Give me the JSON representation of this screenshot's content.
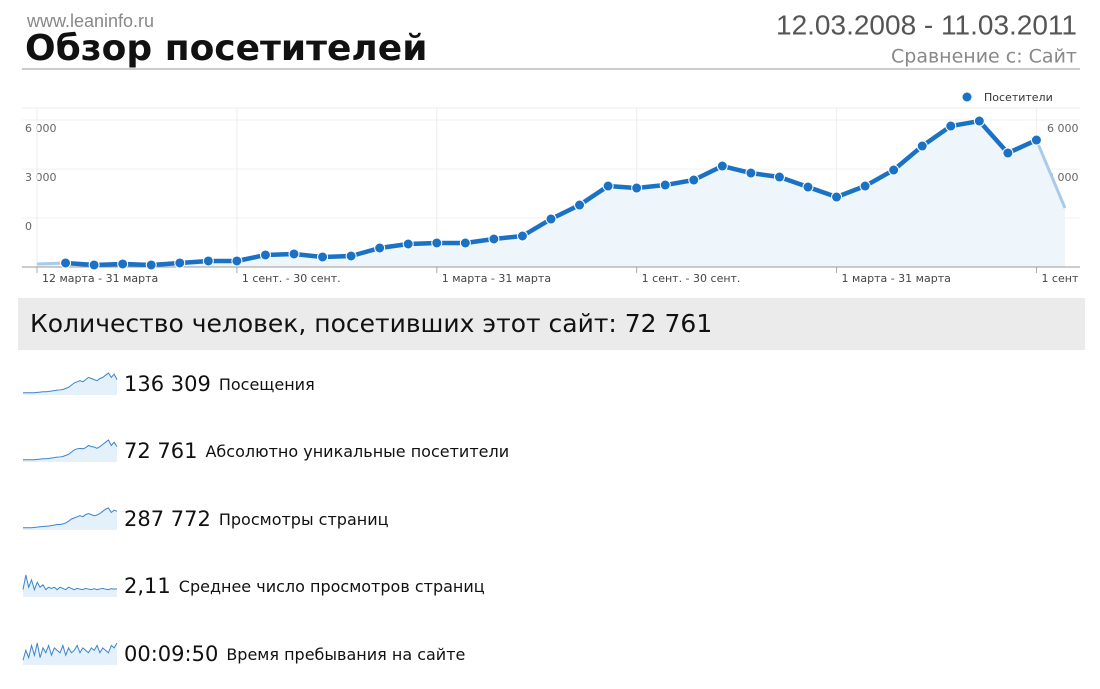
{
  "site": "www.leaninfo.ru",
  "title": "Обзор посетителей",
  "date_range": "12.03.2008 - 11.03.2011",
  "comparison": "Сравнение с: Сайт",
  "chart_data": {
    "type": "line",
    "categories": [
      "12 марта - 31 марта",
      null,
      null,
      null,
      null,
      null,
      null,
      "1 сент. - 30 сент.",
      null,
      null,
      null,
      null,
      null,
      null,
      "1 марта - 31 марта",
      null,
      null,
      null,
      null,
      null,
      null,
      "1 сент. - 30 сент.",
      null,
      null,
      null,
      null,
      null,
      null,
      "1 марта - 31 марта",
      null,
      null,
      null,
      null,
      null,
      null,
      "1 сент",
      null
    ],
    "series": [
      {
        "name": "Посетители",
        "color": "#1b72c4",
        "values": [
          -2265,
          -2204,
          -2327,
          -2265,
          -2327,
          -2204,
          -2082,
          -2082,
          -1714,
          -1653,
          -1837,
          -1776,
          -1286,
          -1041,
          -980,
          -980,
          -735,
          -551,
          490,
          1347,
          2510,
          2388,
          2571,
          2878,
          3735,
          3306,
          3061,
          2449,
          1837,
          2510,
          3490,
          4959,
          6184,
          6490,
          4531,
          5327,
          1163
        ]
      }
    ],
    "ylim": [
      -2450,
      7290
    ],
    "yticks": [
      0,
      {
        "value": 3000,
        "label": "3 000"
      },
      {
        "value": 6000,
        "label": "6 000"
      }
    ],
    "grid": true,
    "legend": "top-right"
  },
  "summary": "Количество человек, посетивших этот сайт: 72 761",
  "metrics": [
    {
      "value": "136 309",
      "label": "Посещения",
      "sparkline": [
        1,
        1,
        1,
        1,
        1,
        1.2,
        1.3,
        1.5,
        1.5,
        1.6,
        1.8,
        2,
        2.2,
        2.3,
        2.5,
        3,
        3.5,
        4.5,
        5.5,
        6,
        6.5,
        6,
        7,
        8,
        7.5,
        7,
        6.5,
        7.5,
        8,
        9,
        10,
        8,
        9.5,
        7
      ]
    },
    {
      "value": "72 761",
      "label": "Абсолютно уникальные посетители",
      "sparkline": [
        1,
        1,
        1,
        1,
        1,
        1.2,
        1.3,
        1.5,
        1.5,
        1.6,
        1.8,
        2,
        2.2,
        2.3,
        2.5,
        3,
        3.5,
        4.5,
        5.5,
        6,
        6.2,
        6,
        6.5,
        7.5,
        7,
        6.8,
        6.2,
        7,
        8,
        9,
        10,
        7.5,
        9,
        7
      ]
    },
    {
      "value": "287 772",
      "label": "Просмотры страниц",
      "sparkline": [
        1,
        1,
        1,
        1,
        1.2,
        1.3,
        1.5,
        1.6,
        1.7,
        1.8,
        2,
        2.2,
        2.5,
        2.5,
        2.8,
        3.2,
        4,
        5,
        5.5,
        6,
        6.5,
        6,
        7,
        7.5,
        7,
        6.5,
        6.8,
        7.5,
        8.5,
        9.5,
        10,
        8,
        9,
        8.5
      ]
    },
    {
      "value": "2,11",
      "label": "Среднее число просмотров страниц",
      "sparkline": [
        3,
        9,
        4,
        7,
        3,
        6,
        4,
        5,
        3,
        4,
        3.5,
        4,
        3,
        4,
        3.5,
        3,
        4,
        3.5,
        3,
        3.5,
        3.2,
        3,
        3.5,
        3.2,
        3,
        3.4,
        3,
        3.3,
        3.5,
        3.2,
        3,
        3.4,
        3.2,
        3.3
      ]
    },
    {
      "value": "00:09:50",
      "label": "Время пребывания на сайте",
      "sparkline": [
        2,
        6,
        3,
        8,
        4,
        9,
        3,
        7,
        5,
        8,
        4,
        7,
        6,
        5,
        8,
        4,
        7,
        5,
        6,
        8,
        5,
        7,
        6,
        5,
        7,
        6,
        8,
        5,
        7,
        6,
        5,
        8,
        7,
        9
      ]
    }
  ]
}
